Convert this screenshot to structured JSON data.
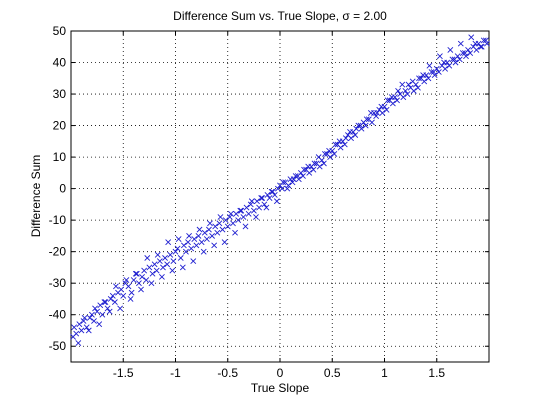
{
  "chart_data": {
    "type": "scatter",
    "title": "Difference Sum vs. True Slope, σ = 2.00",
    "xlabel": "True Slope",
    "ylabel": "Difference Sum",
    "xlim": [
      -2,
      2
    ],
    "ylim": [
      -55,
      50
    ],
    "xticks": [
      -1.5,
      -1,
      -0.5,
      0,
      0.5,
      1,
      1.5
    ],
    "xtick_labels": [
      "-1.5",
      "-1",
      "-0.5",
      "0",
      "0.5",
      "1",
      "1.5"
    ],
    "yticks": [
      -50,
      -40,
      -30,
      -20,
      -10,
      0,
      10,
      20,
      30,
      40,
      50
    ],
    "ytick_labels": [
      "-50",
      "-40",
      "-30",
      "-20",
      "-10",
      "0",
      "10",
      "20",
      "30",
      "40",
      "50"
    ],
    "grid": true,
    "marker": "x",
    "color": "#1f1fd0",
    "series": [
      {
        "x": [
          -1.98,
          -1.95,
          -1.92,
          -1.9,
          -1.88,
          -1.85,
          -1.82,
          -1.8,
          -1.78,
          -1.75,
          -1.72,
          -1.7,
          -1.68,
          -1.65,
          -1.62,
          -1.6,
          -1.58,
          -1.55,
          -1.52,
          -1.5,
          -1.48,
          -1.45,
          -1.42,
          -1.4,
          -1.38,
          -1.35,
          -1.32,
          -1.3,
          -1.28,
          -1.25,
          -1.22,
          -1.2,
          -1.18,
          -1.15,
          -1.12,
          -1.1,
          -1.08,
          -1.05,
          -1.02,
          -1.0,
          -0.98,
          -0.95,
          -0.92,
          -0.9,
          -0.88,
          -0.85,
          -0.82,
          -0.8,
          -0.78,
          -0.75,
          -0.72,
          -0.7,
          -0.68,
          -0.65,
          -0.62,
          -0.6,
          -0.58,
          -0.55,
          -0.52,
          -0.5,
          -0.48,
          -0.45,
          -0.42,
          -0.4,
          -0.38,
          -0.35,
          -0.32,
          -0.3,
          -0.28,
          -0.25,
          -0.22,
          -0.2,
          -0.18,
          -0.15,
          -0.12,
          -0.1,
          -0.08,
          -0.05,
          -0.02,
          0.0,
          0.02,
          0.05,
          0.08,
          0.1,
          0.12,
          0.15,
          0.18,
          0.2,
          0.22,
          0.25,
          0.28,
          0.3,
          0.32,
          0.35,
          0.38,
          0.4,
          0.42,
          0.45,
          0.48,
          0.5,
          0.52,
          0.55,
          0.58,
          0.6,
          0.62,
          0.65,
          0.68,
          0.7,
          0.72,
          0.75,
          0.78,
          0.8,
          0.82,
          0.85,
          0.88,
          0.9,
          0.92,
          0.95,
          0.98,
          1.0,
          1.02,
          1.05,
          1.08,
          1.1,
          1.12,
          1.15,
          1.18,
          1.2,
          1.22,
          1.25,
          1.28,
          1.3,
          1.32,
          1.35,
          1.38,
          1.4,
          1.42,
          1.45,
          1.48,
          1.5,
          1.52,
          1.55,
          1.58,
          1.6,
          1.62,
          1.65,
          1.68,
          1.7,
          1.72,
          1.75,
          1.78,
          1.8,
          1.82,
          1.85,
          1.88,
          1.9,
          1.92,
          1.95,
          1.98,
          -1.97,
          -1.87,
          -1.77,
          -1.67,
          -1.57,
          -1.47,
          -1.37,
          -1.27,
          -1.17,
          -1.07,
          -0.97,
          -0.87,
          -0.77,
          -0.67,
          -0.57,
          -0.47,
          -0.37,
          -0.27,
          -0.17,
          -0.07,
          0.03,
          0.13,
          0.23,
          0.33,
          0.43,
          0.53,
          0.63,
          0.73,
          0.83,
          0.93,
          1.03,
          1.13,
          1.23,
          1.33,
          1.43,
          1.53,
          1.63,
          1.73,
          1.83,
          1.93,
          -1.93,
          -1.83,
          -1.73,
          -1.63,
          -1.53,
          -1.43,
          -1.33,
          -1.23,
          -1.13,
          -1.03,
          -0.93,
          -0.83,
          -0.73,
          -0.63,
          -0.53,
          -0.43,
          -0.33,
          -0.23,
          -0.13,
          -0.03,
          0.07,
          0.17,
          0.27,
          0.37,
          0.47,
          0.57,
          0.67,
          0.77,
          0.87,
          0.97,
          1.07,
          1.17,
          1.27,
          1.37,
          1.47,
          1.57,
          1.67,
          1.77,
          1.87,
          1.97
        ],
        "y": [
          -47,
          -46,
          -43,
          -45,
          -42,
          -44,
          -41,
          -40,
          -42,
          -39,
          -37,
          -40,
          -36,
          -38,
          -35,
          -34,
          -36,
          -33,
          -32,
          -34,
          -30,
          -31,
          -33,
          -29,
          -27,
          -30,
          -28,
          -26,
          -29,
          -25,
          -27,
          -24,
          -26,
          -23,
          -25,
          -22,
          -24,
          -21,
          -23,
          -20,
          -19,
          -22,
          -18,
          -20,
          -17,
          -19,
          -16,
          -18,
          -15,
          -17,
          -14,
          -16,
          -13,
          -15,
          -12,
          -14,
          -11,
          -13,
          -10,
          -12,
          -9,
          -11,
          -8,
          -10,
          -7,
          -9,
          -6,
          -8,
          -5,
          -7,
          -4,
          -6,
          -3,
          -5,
          -2,
          -3,
          -1,
          -2,
          0,
          1,
          0,
          2,
          1,
          3,
          2,
          4,
          3,
          5,
          4,
          6,
          5,
          7,
          6,
          8,
          7,
          9,
          8,
          11,
          10,
          12,
          11,
          14,
          13,
          15,
          14,
          17,
          16,
          18,
          17,
          20,
          19,
          21,
          20,
          22,
          21,
          24,
          23,
          25,
          24,
          26,
          25,
          28,
          27,
          29,
          28,
          30,
          29,
          31,
          30,
          32,
          31,
          33,
          32,
          35,
          34,
          36,
          35,
          37,
          36,
          38,
          37,
          39,
          38,
          40,
          39,
          41,
          40,
          42,
          41,
          43,
          42,
          44,
          43,
          45,
          44,
          46,
          45,
          47,
          46,
          -44,
          -41,
          -38,
          -36,
          -31,
          -29,
          -27,
          -22,
          -21,
          -17,
          -16,
          -15,
          -13,
          -11,
          -9,
          -8,
          -7,
          -4,
          -3,
          -1,
          2,
          3,
          6,
          8,
          11,
          14,
          16,
          19,
          22,
          24,
          28,
          31,
          33,
          35,
          39,
          42,
          44,
          46,
          48,
          45,
          -49,
          -45,
          -43,
          -39,
          -38,
          -35,
          -32,
          -30,
          -28,
          -26,
          -25,
          -23,
          -20,
          -18,
          -17,
          -14,
          -12,
          -9,
          -6,
          -4,
          0,
          4,
          7,
          10,
          12,
          15,
          18,
          20,
          24,
          26,
          29,
          33,
          34,
          36,
          37,
          40,
          41,
          43,
          46,
          47
        ]
      }
    ]
  }
}
